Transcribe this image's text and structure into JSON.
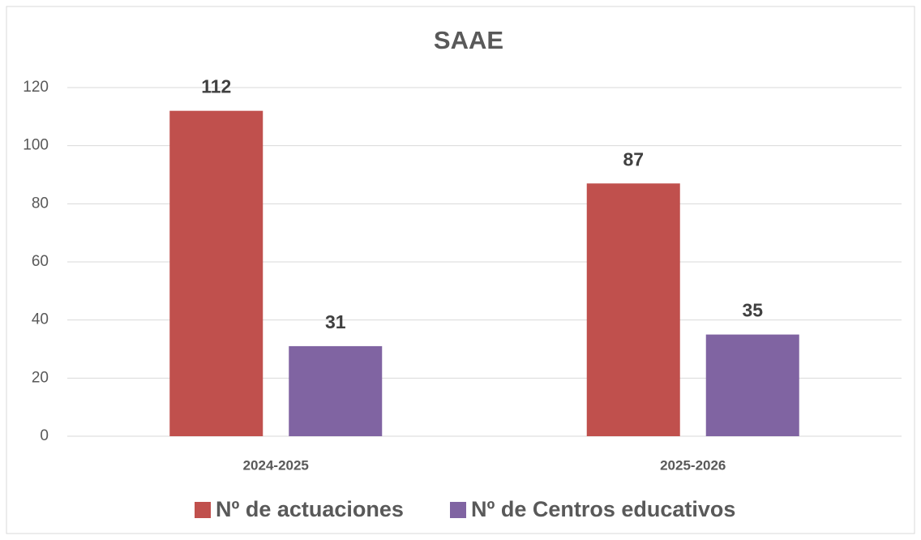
{
  "chart_data": {
    "type": "bar",
    "title": "SAAE",
    "categories": [
      "2024-2025",
      "2025-2026"
    ],
    "series": [
      {
        "name": "Nº de actuaciones",
        "color": "#c0504d",
        "values": [
          112,
          87
        ]
      },
      {
        "name": "Nº de Centros educativos",
        "color": "#8064a2",
        "values": [
          31,
          35
        ]
      }
    ],
    "ylim": [
      0,
      120
    ],
    "yticks": [
      0,
      20,
      40,
      60,
      80,
      100,
      120
    ],
    "grid": true,
    "legend": "bottom"
  }
}
